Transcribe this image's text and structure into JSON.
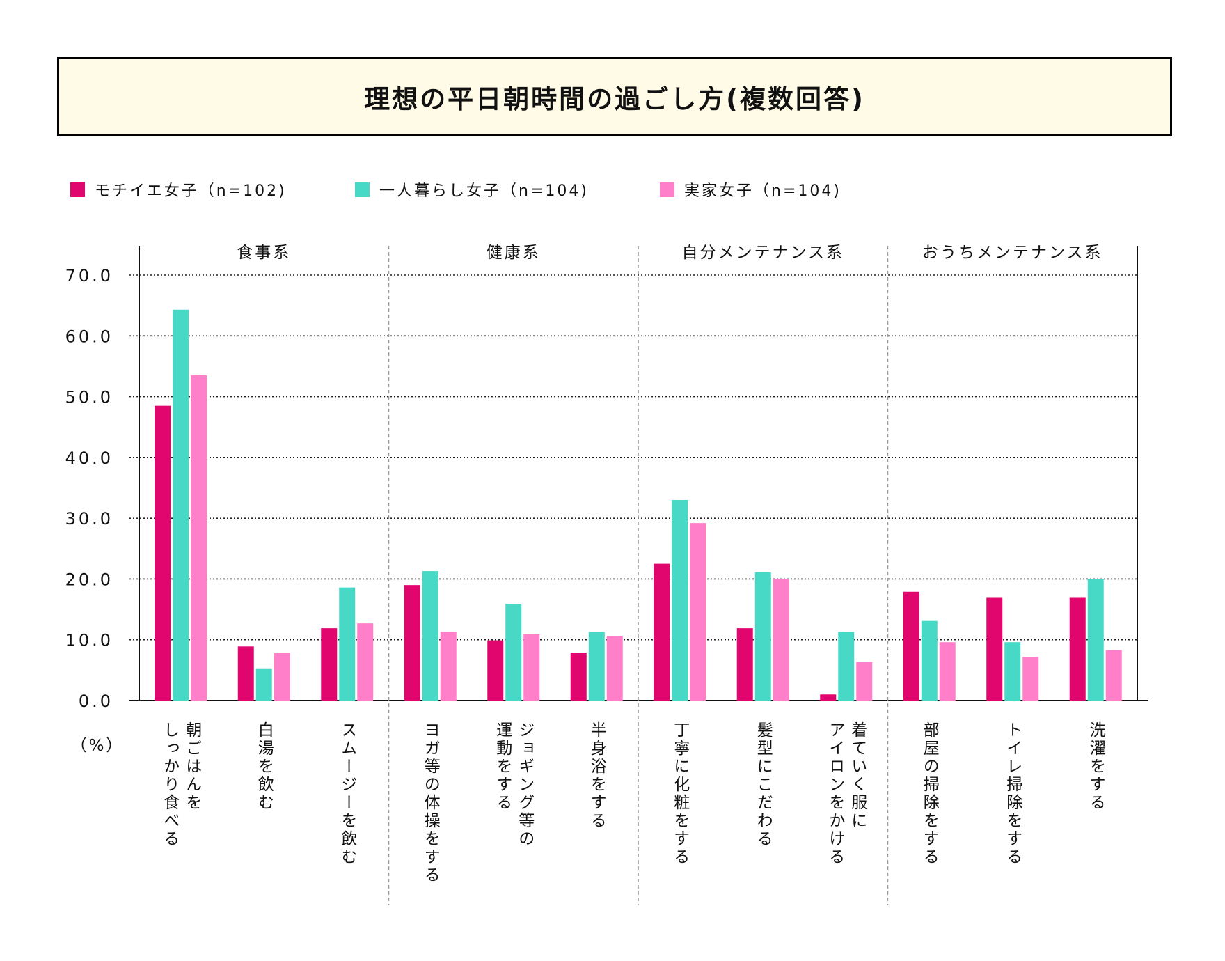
{
  "title": "理想の平日朝時間の過ごし方(複数回答)",
  "legend": [
    {
      "label": "モチイエ女子（n=102)",
      "color": "#e0066e"
    },
    {
      "label": "一人暮らし女子（n=104)",
      "color": "#48d8c6"
    },
    {
      "label": "実家女子（n=104)",
      "color": "#ff80c8"
    }
  ],
  "chart_data": {
    "type": "bar",
    "ylabel": "（%）",
    "ylim": [
      0,
      70
    ],
    "yticks": [
      "0.0",
      "10.0",
      "20.0",
      "30.0",
      "40.0",
      "50.0",
      "60.0",
      "70.0"
    ],
    "grid": true,
    "legend_position": "top-left",
    "groups": [
      {
        "label": "食事系",
        "categories": [
          "朝ごはんを\nしっかり食べる",
          "白湯を飲む",
          "スムージーを飲む"
        ]
      },
      {
        "label": "健康系",
        "categories": [
          "ヨガ等の体操をする",
          "ジョギング等の\n運動をする",
          "半身浴をする"
        ]
      },
      {
        "label": "自分メンテナンス系",
        "categories": [
          "丁寧に化粧をする",
          "髪型にこだわる",
          "着ていく服に\nアイロンをかける"
        ]
      },
      {
        "label": "おうちメンテナンス系",
        "categories": [
          "部屋の掃除をする",
          "トイレ掃除をする",
          "洗濯をする"
        ]
      }
    ],
    "series": [
      {
        "name": "モチイエ女子（n=102)",
        "color": "#e0066e",
        "values": [
          48.5,
          8.9,
          11.9,
          19.0,
          9.9,
          7.9,
          22.5,
          11.9,
          1.0,
          17.9,
          16.9,
          16.9
        ]
      },
      {
        "name": "一人暮らし女子（n=104)",
        "color": "#48d8c6",
        "values": [
          64.3,
          5.3,
          18.6,
          21.3,
          15.9,
          11.3,
          33.0,
          21.1,
          11.3,
          13.1,
          9.6,
          20.0
        ]
      },
      {
        "name": "実家女子（n=104)",
        "color": "#ff80c8",
        "values": [
          53.5,
          7.8,
          12.7,
          11.3,
          10.9,
          10.6,
          29.2,
          20.0,
          6.4,
          9.6,
          7.2,
          8.3
        ]
      }
    ]
  }
}
